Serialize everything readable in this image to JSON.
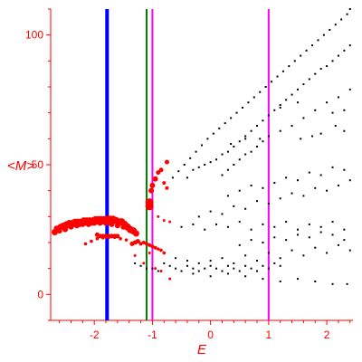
{
  "chart_data": {
    "type": "scatter",
    "xlabel": "E",
    "ylabel": "<M>",
    "xlim": [
      -2.75,
      2.45
    ],
    "ylim": [
      -10,
      110
    ],
    "x_ticks": [
      -2,
      -1,
      0,
      1,
      2
    ],
    "x_tick_labels": [
      "-2",
      "-1",
      "0",
      "1",
      "2"
    ],
    "y_ticks": [
      0,
      50,
      100
    ],
    "y_tick_labels": [
      "0",
      "50",
      "100"
    ],
    "vertical_lines": [
      {
        "x": -1.78,
        "color": "#0000ff"
      },
      {
        "x": -1.1,
        "color": "#008000"
      },
      {
        "x": -1.0,
        "color": "#ff00ff"
      },
      {
        "x": 1.0,
        "color": "#ff00ff"
      }
    ],
    "series": [
      {
        "color": "#ff0000",
        "marker": "circle",
        "points": [
          [
            -2.68,
            24
          ],
          [
            -2.63,
            25
          ],
          [
            -2.58,
            26
          ],
          [
            -2.53,
            26.5
          ],
          [
            -2.48,
            27
          ],
          [
            -2.43,
            27.5
          ],
          [
            -2.38,
            27.5
          ],
          [
            -2.33,
            28
          ],
          [
            -2.28,
            28
          ],
          [
            -2.23,
            28
          ],
          [
            -2.18,
            28.5
          ],
          [
            -2.13,
            28.5
          ],
          [
            -2.08,
            28.5
          ],
          [
            -2.03,
            28.5
          ],
          [
            -1.98,
            29
          ],
          [
            -1.93,
            29
          ],
          [
            -1.88,
            29
          ],
          [
            -1.83,
            29
          ],
          [
            -1.78,
            29
          ],
          [
            -1.73,
            29
          ],
          [
            -1.68,
            29
          ],
          [
            -1.63,
            28.5
          ],
          [
            -1.58,
            28
          ],
          [
            -1.53,
            28
          ],
          [
            -1.48,
            27
          ],
          [
            -1.43,
            26
          ],
          [
            -1.38,
            25
          ],
          [
            -1.33,
            24.5
          ],
          [
            -1.28,
            23.5
          ],
          [
            -2.6,
            24.5
          ],
          [
            -2.5,
            25
          ],
          [
            -2.4,
            26
          ],
          [
            -2.3,
            26.5
          ],
          [
            -2.2,
            27
          ],
          [
            -2.1,
            27
          ],
          [
            -2.0,
            27.5
          ],
          [
            -1.9,
            27.5
          ],
          [
            -1.8,
            27.5
          ],
          [
            -1.7,
            27
          ],
          [
            -1.6,
            26.5
          ],
          [
            -1.5,
            26
          ],
          [
            -2.65,
            25.5
          ],
          [
            -2.55,
            26
          ],
          [
            -2.45,
            26.5
          ],
          [
            -2.35,
            27
          ],
          [
            -2.25,
            27
          ],
          [
            -2.15,
            27.5
          ],
          [
            -2.05,
            27.5
          ],
          [
            -1.95,
            28
          ],
          [
            -1.85,
            28
          ],
          [
            -1.75,
            28
          ],
          [
            -1.95,
            23
          ],
          [
            -1.9,
            22.5
          ],
          [
            -1.85,
            22.5
          ],
          [
            -1.8,
            22.5
          ],
          [
            -1.75,
            22.5
          ],
          [
            -1.7,
            22.5
          ],
          [
            -1.65,
            22.5
          ],
          [
            -1.6,
            22.5
          ],
          [
            -2.15,
            19.5
          ],
          [
            -2.05,
            20.5
          ],
          [
            -1.95,
            21.5
          ],
          [
            -1.85,
            21.8
          ],
          [
            -1.75,
            22
          ],
          [
            -1.65,
            22
          ],
          [
            -1.55,
            21.5
          ],
          [
            -1.45,
            21
          ],
          [
            -1.35,
            19.5
          ],
          [
            -1.3,
            20
          ],
          [
            -1.25,
            20.5
          ],
          [
            -1.2,
            19.5
          ],
          [
            -1.15,
            20
          ],
          [
            -1.1,
            19.5
          ],
          [
            -1.05,
            19
          ],
          [
            -1.0,
            18.5
          ],
          [
            -0.95,
            18
          ],
          [
            -0.9,
            17.5
          ],
          [
            -0.85,
            17
          ],
          [
            -0.8,
            16
          ],
          [
            -1.05,
            34
          ],
          [
            -1.05,
            35.5
          ],
          [
            -1.02,
            40
          ],
          [
            -1.0,
            42
          ],
          [
            -0.95,
            44.5
          ],
          [
            -0.9,
            47
          ],
          [
            -0.85,
            48
          ],
          [
            -0.75,
            51
          ],
          [
            -0.8,
            43
          ],
          [
            -0.75,
            41
          ],
          [
            -0.9,
            30
          ],
          [
            -0.8,
            28.5
          ],
          [
            -0.7,
            28
          ],
          [
            -1.05,
            16
          ],
          [
            -1.15,
            12
          ],
          [
            -1.3,
            15
          ],
          [
            -0.95,
            10
          ],
          [
            -0.85,
            9
          ],
          [
            -0.7,
            6
          ]
        ],
        "sizes": [
          3.5,
          3.5,
          3.5,
          3.5,
          3.5,
          3.5,
          3.5,
          3.5,
          3.5,
          3.5,
          3.5,
          3.5,
          3.5,
          3.5,
          3.5,
          3.5,
          3.5,
          3.5,
          4,
          4,
          4,
          4,
          4,
          4,
          4,
          4,
          4,
          4,
          3.5,
          3,
          3,
          3,
          3,
          3,
          3,
          3,
          3,
          3,
          3,
          3,
          3,
          3,
          3,
          3,
          3,
          3,
          3,
          3,
          3,
          3,
          3,
          2.5,
          2.5,
          2.5,
          2.5,
          2.5,
          2.5,
          2.5,
          2.5,
          1.8,
          1.8,
          1.8,
          1.8,
          1.8,
          1.8,
          1.8,
          1.8,
          2.5,
          2.5,
          2.5,
          2,
          2,
          2,
          2,
          2,
          2,
          1.8,
          1.8,
          1.8,
          4.5,
          4.5,
          3,
          3,
          3,
          2.5,
          2.5,
          2.5,
          2,
          2,
          1.5,
          1.5,
          1.5,
          1.5,
          1.5,
          1.5,
          1.5,
          1.5,
          1.5
        ]
      },
      {
        "color": "#000000",
        "marker": "dot",
        "points": [
          [
            -0.65,
            45
          ],
          [
            -0.55,
            47.5
          ],
          [
            -0.45,
            50
          ],
          [
            -0.35,
            52.5
          ],
          [
            -0.25,
            55
          ],
          [
            -0.15,
            57.5
          ],
          [
            -0.05,
            60
          ],
          [
            0.05,
            62
          ],
          [
            0.15,
            64
          ],
          [
            0.25,
            66
          ],
          [
            0.35,
            68
          ],
          [
            0.45,
            70
          ],
          [
            0.55,
            72
          ],
          [
            0.65,
            74
          ],
          [
            0.75,
            76
          ],
          [
            0.85,
            78
          ],
          [
            0.95,
            80
          ],
          [
            1.05,
            82
          ],
          [
            1.15,
            84
          ],
          [
            1.25,
            86
          ],
          [
            1.35,
            88
          ],
          [
            1.45,
            90
          ],
          [
            1.55,
            92
          ],
          [
            1.65,
            94
          ],
          [
            1.75,
            96
          ],
          [
            1.85,
            98
          ],
          [
            1.95,
            100
          ],
          [
            2.05,
            102
          ],
          [
            2.15,
            104
          ],
          [
            2.25,
            106
          ],
          [
            2.35,
            108
          ],
          [
            2.4,
            110
          ],
          [
            -0.4,
            45
          ],
          [
            -0.3,
            48
          ],
          [
            -0.2,
            49
          ],
          [
            -0.1,
            50
          ],
          [
            0.0,
            51
          ],
          [
            0.1,
            52
          ],
          [
            0.2,
            54
          ],
          [
            0.3,
            55
          ],
          [
            0.4,
            57
          ],
          [
            0.5,
            59
          ],
          [
            0.6,
            61
          ],
          [
            0.7,
            63
          ],
          [
            0.8,
            65
          ],
          [
            0.9,
            67
          ],
          [
            1.0,
            69
          ],
          [
            1.1,
            71
          ],
          [
            1.2,
            73
          ],
          [
            1.3,
            75
          ],
          [
            1.4,
            77
          ],
          [
            1.5,
            79
          ],
          [
            1.6,
            81
          ],
          [
            1.7,
            83
          ],
          [
            1.8,
            85
          ],
          [
            1.9,
            87
          ],
          [
            2.0,
            88
          ],
          [
            2.1,
            90
          ],
          [
            2.2,
            92
          ],
          [
            2.3,
            94
          ],
          [
            2.4,
            96
          ],
          [
            0.2,
            46
          ],
          [
            0.3,
            48
          ],
          [
            0.4,
            50
          ],
          [
            0.5,
            52
          ],
          [
            0.6,
            54
          ],
          [
            0.7,
            55
          ],
          [
            0.8,
            57
          ],
          [
            0.9,
            59
          ],
          [
            1.0,
            61
          ],
          [
            1.2,
            63
          ],
          [
            1.4,
            65
          ],
          [
            1.6,
            68
          ],
          [
            1.8,
            71
          ],
          [
            2.0,
            74
          ],
          [
            2.2,
            76
          ],
          [
            2.4,
            79
          ],
          [
            1.2,
            72
          ],
          [
            1.5,
            74
          ],
          [
            2.1,
            70
          ],
          [
            2.3,
            71
          ],
          [
            2.15,
            65
          ],
          [
            1.55,
            60
          ],
          [
            1.75,
            61
          ],
          [
            1.9,
            62
          ],
          [
            2.3,
            63
          ],
          [
            0.85,
            60
          ],
          [
            0.6,
            60
          ],
          [
            0.35,
            58
          ],
          [
            -1.3,
            12
          ],
          [
            -1.2,
            11
          ],
          [
            -1.1,
            10
          ],
          [
            -1.0,
            10
          ],
          [
            -0.9,
            9
          ],
          [
            -0.8,
            12
          ],
          [
            -0.7,
            11
          ],
          [
            -0.6,
            10
          ],
          [
            -0.5,
            9
          ],
          [
            -0.4,
            11
          ],
          [
            -0.3,
            10
          ],
          [
            -0.2,
            9
          ],
          [
            -0.1,
            10
          ],
          [
            0.0,
            11
          ],
          [
            0.1,
            10
          ],
          [
            0.2,
            9
          ],
          [
            0.3,
            11
          ],
          [
            0.4,
            10
          ],
          [
            0.5,
            9
          ],
          [
            0.6,
            11
          ],
          [
            0.7,
            10
          ],
          [
            0.8,
            9
          ],
          [
            0.9,
            11
          ],
          [
            1.0,
            10
          ],
          [
            1.1,
            12
          ],
          [
            1.2,
            11
          ],
          [
            -0.6,
            14
          ],
          [
            -0.4,
            13
          ],
          [
            -0.2,
            12
          ],
          [
            0.0,
            13
          ],
          [
            0.2,
            14
          ],
          [
            0.4,
            12
          ],
          [
            0.6,
            15
          ],
          [
            0.8,
            13
          ],
          [
            1.0,
            16
          ],
          [
            1.2,
            14
          ],
          [
            1.4,
            17
          ],
          [
            1.6,
            15
          ],
          [
            1.8,
            18
          ],
          [
            2.0,
            16
          ],
          [
            2.2,
            19
          ],
          [
            2.4,
            17
          ],
          [
            -0.3,
            8
          ],
          [
            0.0,
            7
          ],
          [
            0.3,
            8
          ],
          [
            0.6,
            7
          ],
          [
            0.9,
            6
          ],
          [
            1.2,
            5
          ],
          [
            1.5,
            6
          ],
          [
            1.8,
            5
          ],
          [
            2.1,
            4
          ],
          [
            2.35,
            4
          ],
          [
            -0.5,
            26
          ],
          [
            -0.3,
            27
          ],
          [
            -0.1,
            25
          ],
          [
            0.1,
            27
          ],
          [
            0.3,
            26
          ],
          [
            0.5,
            28
          ],
          [
            0.7,
            25
          ],
          [
            0.9,
            27
          ],
          [
            1.1,
            26
          ],
          [
            1.3,
            28
          ],
          [
            1.5,
            25
          ],
          [
            1.7,
            27
          ],
          [
            1.9,
            26
          ],
          [
            2.1,
            28
          ],
          [
            2.3,
            25
          ],
          [
            -0.2,
            30
          ],
          [
            0.0,
            32
          ],
          [
            0.2,
            31
          ],
          [
            0.4,
            34
          ],
          [
            0.6,
            33
          ],
          [
            0.8,
            36
          ],
          [
            1.0,
            35
          ],
          [
            1.2,
            37
          ],
          [
            1.4,
            39
          ],
          [
            1.6,
            38
          ],
          [
            1.8,
            41
          ],
          [
            2.0,
            40
          ],
          [
            2.2,
            42
          ],
          [
            2.4,
            44
          ],
          [
            0.5,
            19
          ],
          [
            0.7,
            21
          ],
          [
            0.9,
            20
          ],
          [
            1.1,
            22
          ],
          [
            1.3,
            21
          ],
          [
            1.5,
            23
          ],
          [
            1.7,
            22
          ],
          [
            1.9,
            24
          ],
          [
            2.1,
            23
          ],
          [
            2.3,
            21
          ],
          [
            0.3,
            38
          ],
          [
            0.5,
            40
          ],
          [
            0.7,
            42
          ],
          [
            0.9,
            41
          ],
          [
            1.1,
            43
          ],
          [
            1.3,
            45
          ],
          [
            1.5,
            44
          ],
          [
            1.7,
            47
          ],
          [
            1.9,
            46
          ],
          [
            2.1,
            49
          ],
          [
            2.3,
            48
          ]
        ]
      }
    ]
  }
}
